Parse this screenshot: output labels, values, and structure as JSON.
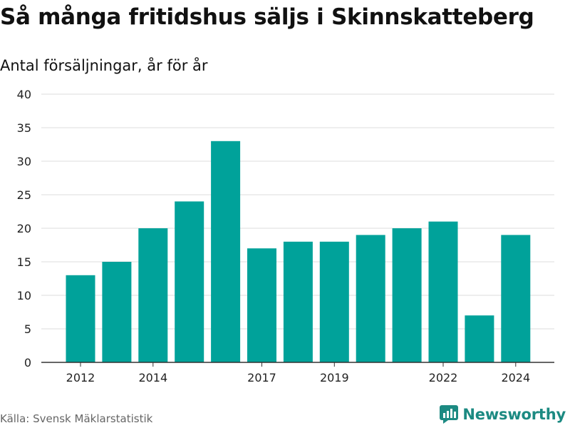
{
  "title": "Så många fritidshus säljs i Skinnskatteberg",
  "subtitle": "Antal försäljningar, år för år",
  "source": "Källa: Svensk Mäklarstatistik",
  "brand": "Newsworthy",
  "colors": {
    "bar": "#00a29a",
    "brand": "#1c8a82",
    "grid": "#dddddd",
    "axis": "#333333"
  },
  "chart_data": {
    "type": "bar",
    "title": "Så många fritidshus säljs i Skinnskatteberg",
    "subtitle": "Antal försäljningar, år för år",
    "categories": [
      "2012",
      "2013",
      "2014",
      "2015",
      "2016",
      "2017",
      "2018",
      "2019",
      "2020",
      "2021",
      "2022",
      "2023",
      "2024"
    ],
    "values": [
      13,
      15,
      20,
      24,
      33,
      17,
      18,
      18,
      19,
      20,
      21,
      7,
      19
    ],
    "x_tick_labels": [
      "2012",
      "2014",
      "2017",
      "2019",
      "2022",
      "2024"
    ],
    "y_ticks": [
      0,
      5,
      10,
      15,
      20,
      25,
      30,
      35,
      40
    ],
    "ylim": [
      0,
      40
    ],
    "xlabel": "",
    "ylabel": "",
    "grid": "horizontal",
    "legend": "none"
  }
}
